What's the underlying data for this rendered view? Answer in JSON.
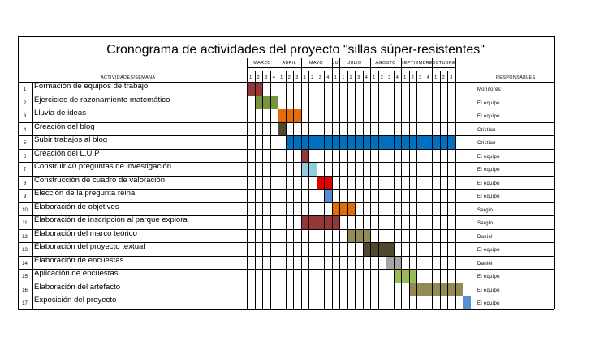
{
  "title": "Cronograma de actividades del proyecto \"sillas súper-resistentes\"",
  "header": {
    "activities_label": "ACTIVIDADES/SEMANA",
    "responsables_label": "RESPONSABLES"
  },
  "months": [
    {
      "label": "MARZO",
      "weeks": [
        "1",
        "2",
        "3",
        "4"
      ]
    },
    {
      "label": "ABRIL",
      "weeks": [
        "1",
        "2",
        "3"
      ]
    },
    {
      "label": "MAYO",
      "weeks": [
        "1",
        "2",
        "3",
        "4"
      ]
    },
    {
      "label": "JU",
      "weeks": [
        "1"
      ]
    },
    {
      "label": "JULIO",
      "weeks": [
        "1",
        "2",
        "3",
        "4"
      ]
    },
    {
      "label": "AGOSTO",
      "weeks": [
        "1",
        "2",
        "3",
        "4"
      ]
    },
    {
      "label": "SEPTIEMBRE",
      "weeks": [
        "1",
        "2",
        "3",
        "4"
      ]
    },
    {
      "label": "OCTUBRE",
      "weeks": [
        "1",
        "2",
        "3"
      ]
    }
  ],
  "rows": [
    {
      "num": "1",
      "activity": "Formación de equipos de trabajo",
      "responsable": "Monitores",
      "start": 0,
      "end": 2,
      "color": "#953735"
    },
    {
      "num": "2",
      "activity": "Ejercicios de razonamiento matemático",
      "responsable": "El equipo",
      "start": 1,
      "end": 4,
      "color": "#77933C"
    },
    {
      "num": "3",
      "activity": "Lluvia de ideas",
      "responsable": "El equipo",
      "start": 4,
      "end": 7,
      "color": "#E36C09"
    },
    {
      "num": "4",
      "activity": "Creación del blog",
      "responsable": "Cristian",
      "start": 4,
      "end": 5,
      "color": "#4F4A2F"
    },
    {
      "num": "5",
      "activity": "Subir trabajos al blog",
      "responsable": "Cristian",
      "start": 5,
      "end": 27,
      "color": "#0070C0"
    },
    {
      "num": "6",
      "activity": "Creación del L.U.P",
      "responsable": "El equipo",
      "start": 7,
      "end": 8,
      "color": "#953735"
    },
    {
      "num": "7",
      "activity": "Construir 40 preguntas de investigación",
      "responsable": "El equipo",
      "start": 7,
      "end": 9,
      "color": "#93CDDD"
    },
    {
      "num": "8",
      "activity": "Construcción de cuadro de valoración",
      "responsable": "El equipo",
      "start": 9,
      "end": 11,
      "color": "#E30000"
    },
    {
      "num": "9",
      "activity": "Elección de la pregunta reina",
      "responsable": "El equipo",
      "start": 10,
      "end": 11,
      "color": "#558ED5"
    },
    {
      "num": "10",
      "activity": "Elaboración de objetivos",
      "responsable": "Sergio",
      "start": 11,
      "end": 14,
      "color": "#E36C09"
    },
    {
      "num": "11",
      "activity": "Elaboración de inscripción al parque explora",
      "responsable": "Sergio",
      "start": 7,
      "end": 12,
      "color": "#953735"
    },
    {
      "num": "12",
      "activity": "Elaboración del marco teórico",
      "responsable": "Daniel",
      "start": 13,
      "end": 16,
      "color": "#948A54"
    },
    {
      "num": "13",
      "activity": "Elaboración del proyecto textual",
      "responsable": "El equipo",
      "start": 15,
      "end": 19,
      "color": "#4F4A2F"
    },
    {
      "num": "14",
      "activity": "Elaboración de encuestas",
      "responsable": "Daniel",
      "start": 18,
      "end": 20,
      "color": "#A6A6A6"
    },
    {
      "num": "15",
      "activity": "Aplicación de encuestas",
      "responsable": "El equipo",
      "start": 19,
      "end": 22,
      "color": "#9BBB59"
    },
    {
      "num": "16",
      "activity": "Elaboración del artefacto",
      "responsable": "El equipo",
      "start": 21,
      "end": 28,
      "color": "#948A54"
    },
    {
      "num": "17",
      "activity": "Exposición del proyecto",
      "responsable": "El equipo",
      "start": 28,
      "end": 29,
      "color": "#558ED5"
    }
  ]
}
